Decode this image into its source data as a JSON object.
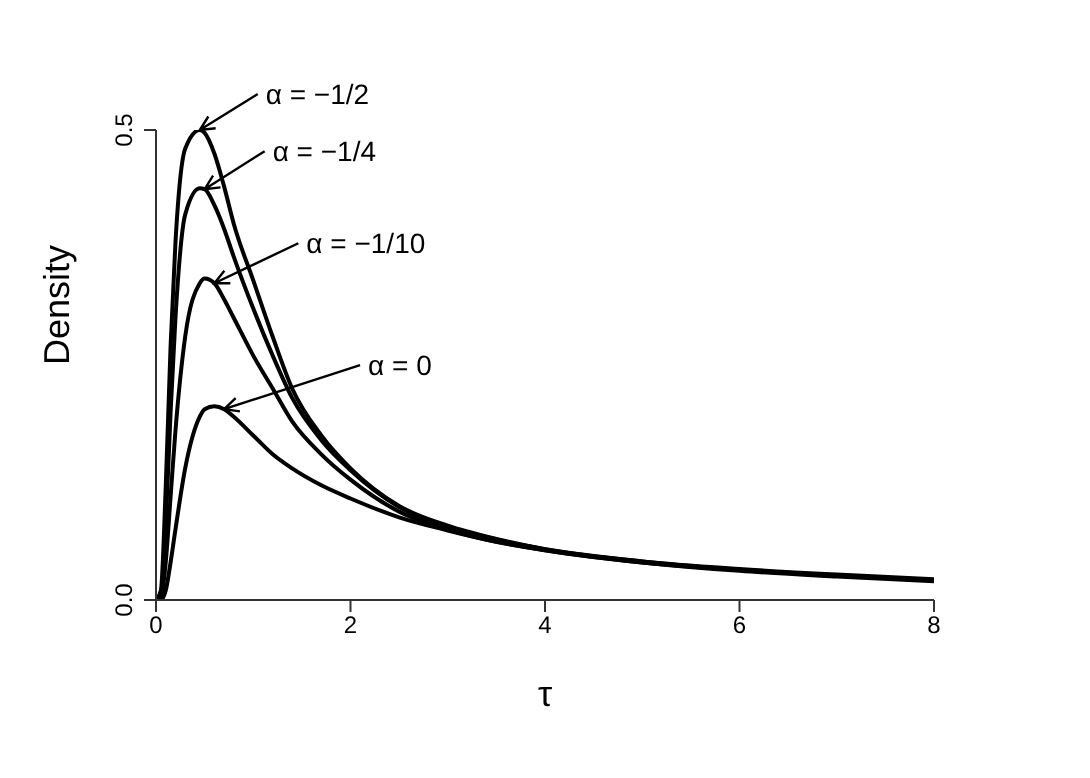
{
  "chart_data": {
    "type": "line",
    "xlabel": "τ",
    "ylabel": "Density",
    "x": [
      0,
      0.05,
      0.1,
      0.15,
      0.2,
      0.3,
      0.45,
      0.5,
      0.6,
      0.7,
      0.8,
      1,
      1.2,
      1.4,
      1.7,
      2,
      2.5,
      3,
      3.5,
      4,
      5,
      6,
      7,
      8
    ],
    "series": [
      {
        "color": "#000000",
        "values": [
          0,
          0.01,
          0.12,
          0.27,
          0.38,
          0.48,
          0.5,
          0.497,
          0.475,
          0.44,
          0.4,
          0.34,
          0.28,
          0.225,
          0.175,
          0.14,
          0.1,
          0.079,
          0.065,
          0.054,
          0.041,
          0.033,
          0.027,
          0.022
        ]
      },
      {
        "color": "#000000",
        "values": [
          0,
          0.005,
          0.08,
          0.2,
          0.3,
          0.41,
          0.438,
          0.437,
          0.42,
          0.395,
          0.365,
          0.31,
          0.26,
          0.215,
          0.17,
          0.138,
          0.099,
          0.078,
          0.064,
          0.054,
          0.041,
          0.032,
          0.026,
          0.021
        ]
      },
      {
        "color": "#000000",
        "values": [
          0,
          0.002,
          0.04,
          0.11,
          0.18,
          0.28,
          0.337,
          0.342,
          0.337,
          0.32,
          0.3,
          0.26,
          0.225,
          0.19,
          0.155,
          0.128,
          0.094,
          0.075,
          0.062,
          0.053,
          0.04,
          0.032,
          0.026,
          0.021
        ]
      },
      {
        "color": "#000000",
        "values": [
          0,
          0,
          0.01,
          0.04,
          0.075,
          0.14,
          0.195,
          0.203,
          0.206,
          0.203,
          0.195,
          0.175,
          0.155,
          0.14,
          0.122,
          0.108,
          0.088,
          0.074,
          0.062,
          0.053,
          0.04,
          0.031,
          0.025,
          0.02
        ]
      }
    ],
    "annotations": [
      {
        "text": "α = −1/2",
        "x": 0.45,
        "y": 0.5
      },
      {
        "text": "α = −1/4",
        "x": 0.5,
        "y": 0.437
      },
      {
        "text": "α = −1/10",
        "x": 0.6,
        "y": 0.337
      },
      {
        "text": "α = 0",
        "x": 0.7,
        "y": 0.203
      }
    ],
    "xlim": [
      0,
      8
    ],
    "xticks": [
      0,
      2,
      4,
      6,
      8
    ],
    "ylim": [
      0,
      0.5
    ],
    "yticks": [
      {
        "value": 0,
        "label": "0.0"
      },
      {
        "value": 0.5,
        "label": "0.5"
      }
    ],
    "grid": false,
    "legend": false,
    "marker": "none",
    "line_style": "solid"
  }
}
